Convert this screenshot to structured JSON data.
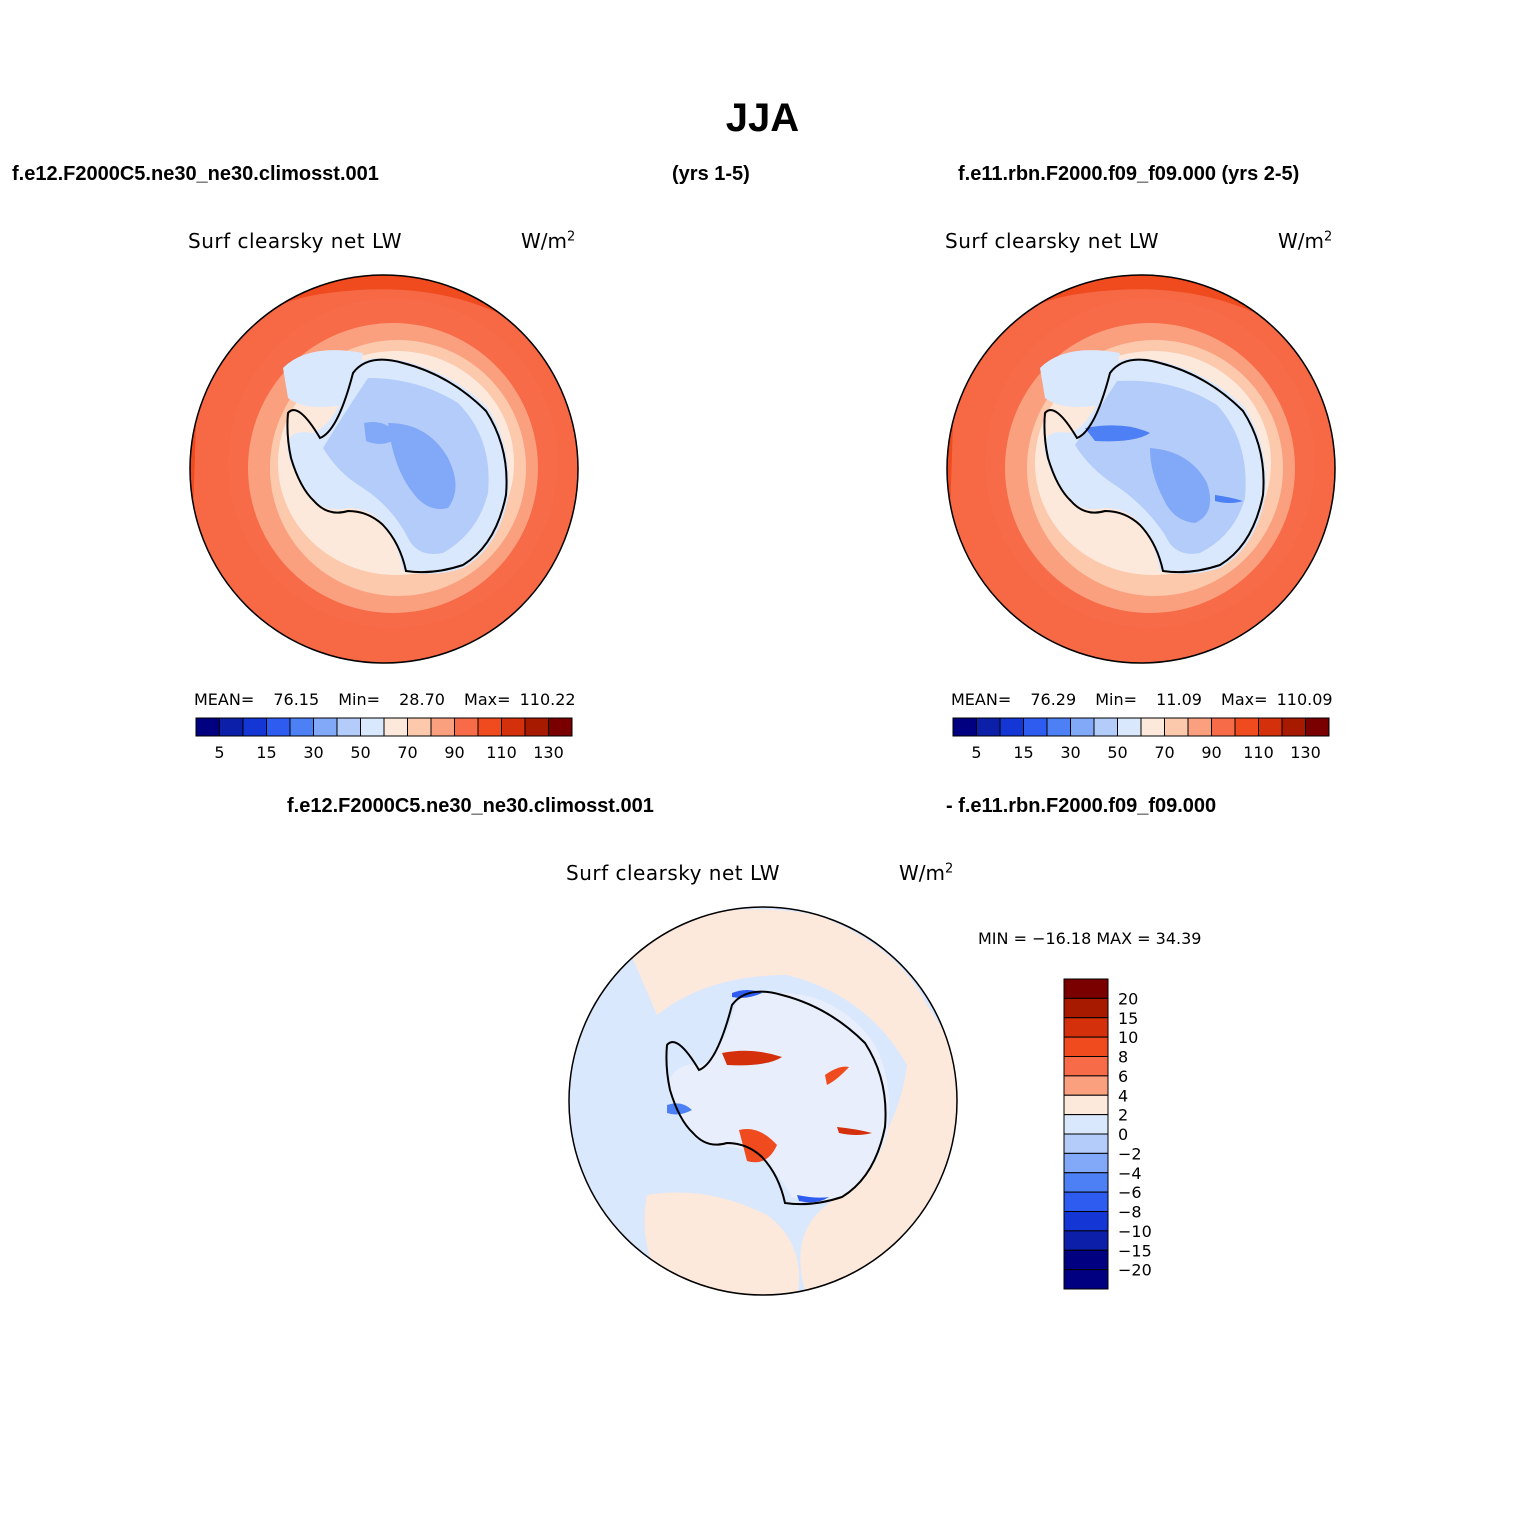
{
  "title": "JJA",
  "top": {
    "left_case": "f.e12.F2000C5.ne30_ne30.climosst.001",
    "left_years": "(yrs 1-5)",
    "right_case": "f.e11.rbn.F2000.f09_f09.000 (yrs 2-5)"
  },
  "panels": [
    {
      "variable": "Surf clearsky net LW",
      "units": "W/m",
      "units_exp": "2",
      "stats": {
        "mean_label": "MEAN=",
        "mean": "76.15",
        "min_label": "Min=",
        "min": "28.70",
        "max_label": "Max=",
        "max": "110.22"
      }
    },
    {
      "variable": "Surf clearsky net LW",
      "units": "W/m",
      "units_exp": "2",
      "stats": {
        "mean_label": "MEAN=",
        "mean": "76.29",
        "min_label": "Min=",
        "min": "11.09",
        "max_label": "Max=",
        "max": "110.09"
      }
    }
  ],
  "diff": {
    "case_a": "f.e12.F2000C5.ne30_ne30.climosst.001",
    "case_b": "- f.e11.rbn.F2000.f09_f09.000",
    "variable": "Surf clearsky net LW",
    "units": "W/m",
    "units_exp": "2",
    "minmax": "MIN = −16.18 MAX =  34.39"
  },
  "colorbar_abs": {
    "colors": [
      "#000080",
      "#0c1fa8",
      "#1436d4",
      "#2f5cf0",
      "#4d7ff5",
      "#82a8f8",
      "#b4ccfa",
      "#d9e8fd",
      "#fde9dc",
      "#fcc9ad",
      "#faa07f",
      "#f76b48",
      "#f04a1f",
      "#d4300c",
      "#a81a00",
      "#7a0000"
    ],
    "labels": [
      "5",
      "15",
      "30",
      "50",
      "70",
      "90",
      "110",
      "130"
    ]
  },
  "colorbar_diff": {
    "colors": [
      "#7a0000",
      "#a81a00",
      "#d4300c",
      "#f04a1f",
      "#f76b48",
      "#faa07f",
      "#fde9dc",
      "#d9e8fd",
      "#b4ccfa",
      "#82a8f8",
      "#4d7ff5",
      "#2f5cf0",
      "#1436d4",
      "#0c1fa8",
      "#000080",
      "#000080"
    ],
    "labels": [
      "20",
      "15",
      "10",
      "8",
      "6",
      "4",
      "2",
      "0",
      "−2",
      "−4",
      "−6",
      "−8",
      "−10",
      "−15",
      "−20"
    ]
  }
}
